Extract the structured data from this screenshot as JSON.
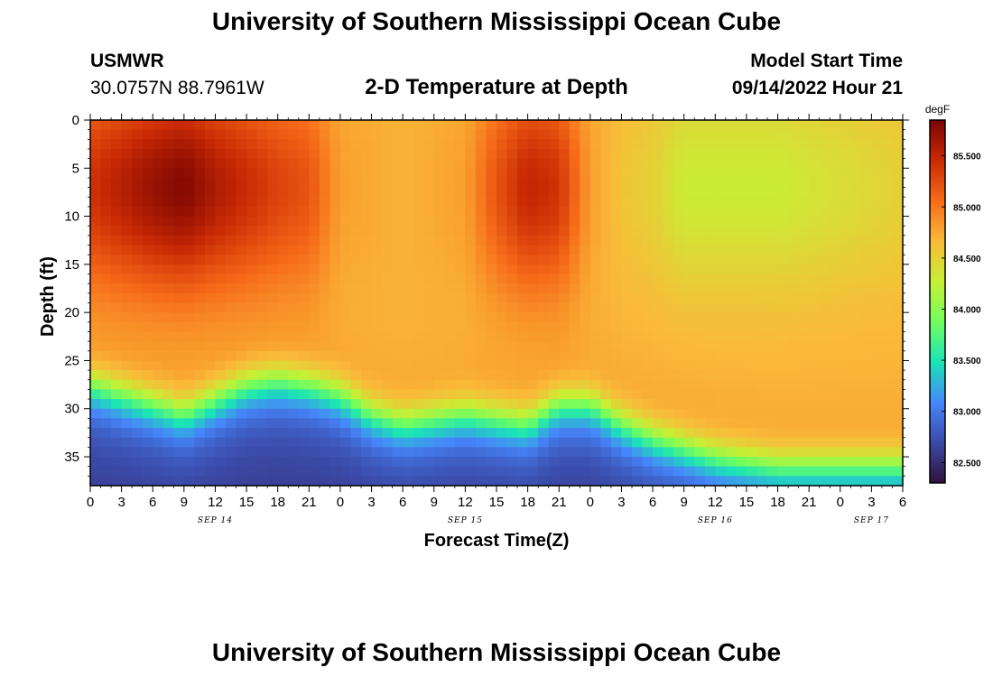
{
  "header": {
    "title": "University of Southern Mississippi Ocean Cube",
    "station": "USMWR",
    "coords": "30.0757N  88.7961W",
    "subtitle": "2-D Temperature at Depth",
    "start_label": "Model Start Time",
    "start_value": "09/14/2022 Hour 21"
  },
  "footer": {
    "title": "University of Southern Mississippi Ocean Cube"
  },
  "chart_data": {
    "type": "heatmap",
    "title": "2-D Temperature at Depth",
    "xlabel": "Forecast Time(Z)",
    "ylabel": "Depth (ft)",
    "x_ticks": [
      "0",
      "3",
      "6",
      "9",
      "12",
      "15",
      "18",
      "21",
      "0",
      "3",
      "6",
      "9",
      "12",
      "15",
      "18",
      "21",
      "0",
      "3",
      "6",
      "9",
      "12",
      "15",
      "18",
      "21",
      "0",
      "3",
      "6"
    ],
    "x_range_hours": [
      0,
      78
    ],
    "day_labels": [
      {
        "label": "SEP 14",
        "hour": 12
      },
      {
        "label": "SEP 15",
        "hour": 36
      },
      {
        "label": "SEP 16",
        "hour": 60
      },
      {
        "label": "SEP 17",
        "hour": 75
      }
    ],
    "y_ticks": [
      "0",
      "5",
      "10",
      "15",
      "20",
      "25",
      "30",
      "35"
    ],
    "y_tick_values": [
      0,
      5,
      10,
      15,
      20,
      25,
      30,
      35
    ],
    "y_range": [
      0,
      38
    ],
    "colorbar": {
      "unit": "degF",
      "range": [
        82.3,
        85.85
      ],
      "tick_labels": [
        "85.500",
        "85.000",
        "84.500",
        "84.000",
        "83.500",
        "83.000",
        "82.500"
      ],
      "tick_values": [
        85.5,
        85.0,
        84.5,
        84.0,
        83.5,
        83.0,
        82.5
      ],
      "colors": [
        "#30123b",
        "#3b4aa8",
        "#4686fb",
        "#1ae4b6",
        "#72fe5e",
        "#c8ef34",
        "#faba39",
        "#f66b19",
        "#ca2a04",
        "#7a0403"
      ]
    },
    "surface_temperature_series": {
      "hours": [
        0,
        6,
        9,
        12,
        18,
        21,
        24,
        30,
        36,
        39,
        42,
        45,
        48,
        51,
        54,
        57,
        60,
        66,
        72,
        78
      ],
      "values_degF": [
        85.4,
        85.7,
        85.8,
        85.6,
        85.3,
        85.2,
        84.8,
        84.7,
        84.8,
        85.2,
        85.5,
        85.4,
        84.8,
        84.6,
        84.5,
        84.3,
        84.3,
        84.3,
        84.4,
        84.5
      ]
    },
    "thermocline_depth_series": {
      "hours": [
        0,
        3,
        6,
        9,
        12,
        15,
        18,
        21,
        24,
        27,
        30,
        33,
        36,
        39,
        42,
        45,
        48,
        51,
        54,
        57,
        60,
        66,
        72,
        78
      ],
      "depth_ft": [
        27,
        28,
        29,
        30,
        28.5,
        27,
        26.5,
        27,
        28,
        30,
        31,
        30.5,
        30,
        30.5,
        31,
        29,
        29,
        31,
        32.5,
        33.5,
        34.5,
        35.5,
        35.5,
        35.5
      ]
    },
    "bottom_temperature_degF": 82.6
  }
}
